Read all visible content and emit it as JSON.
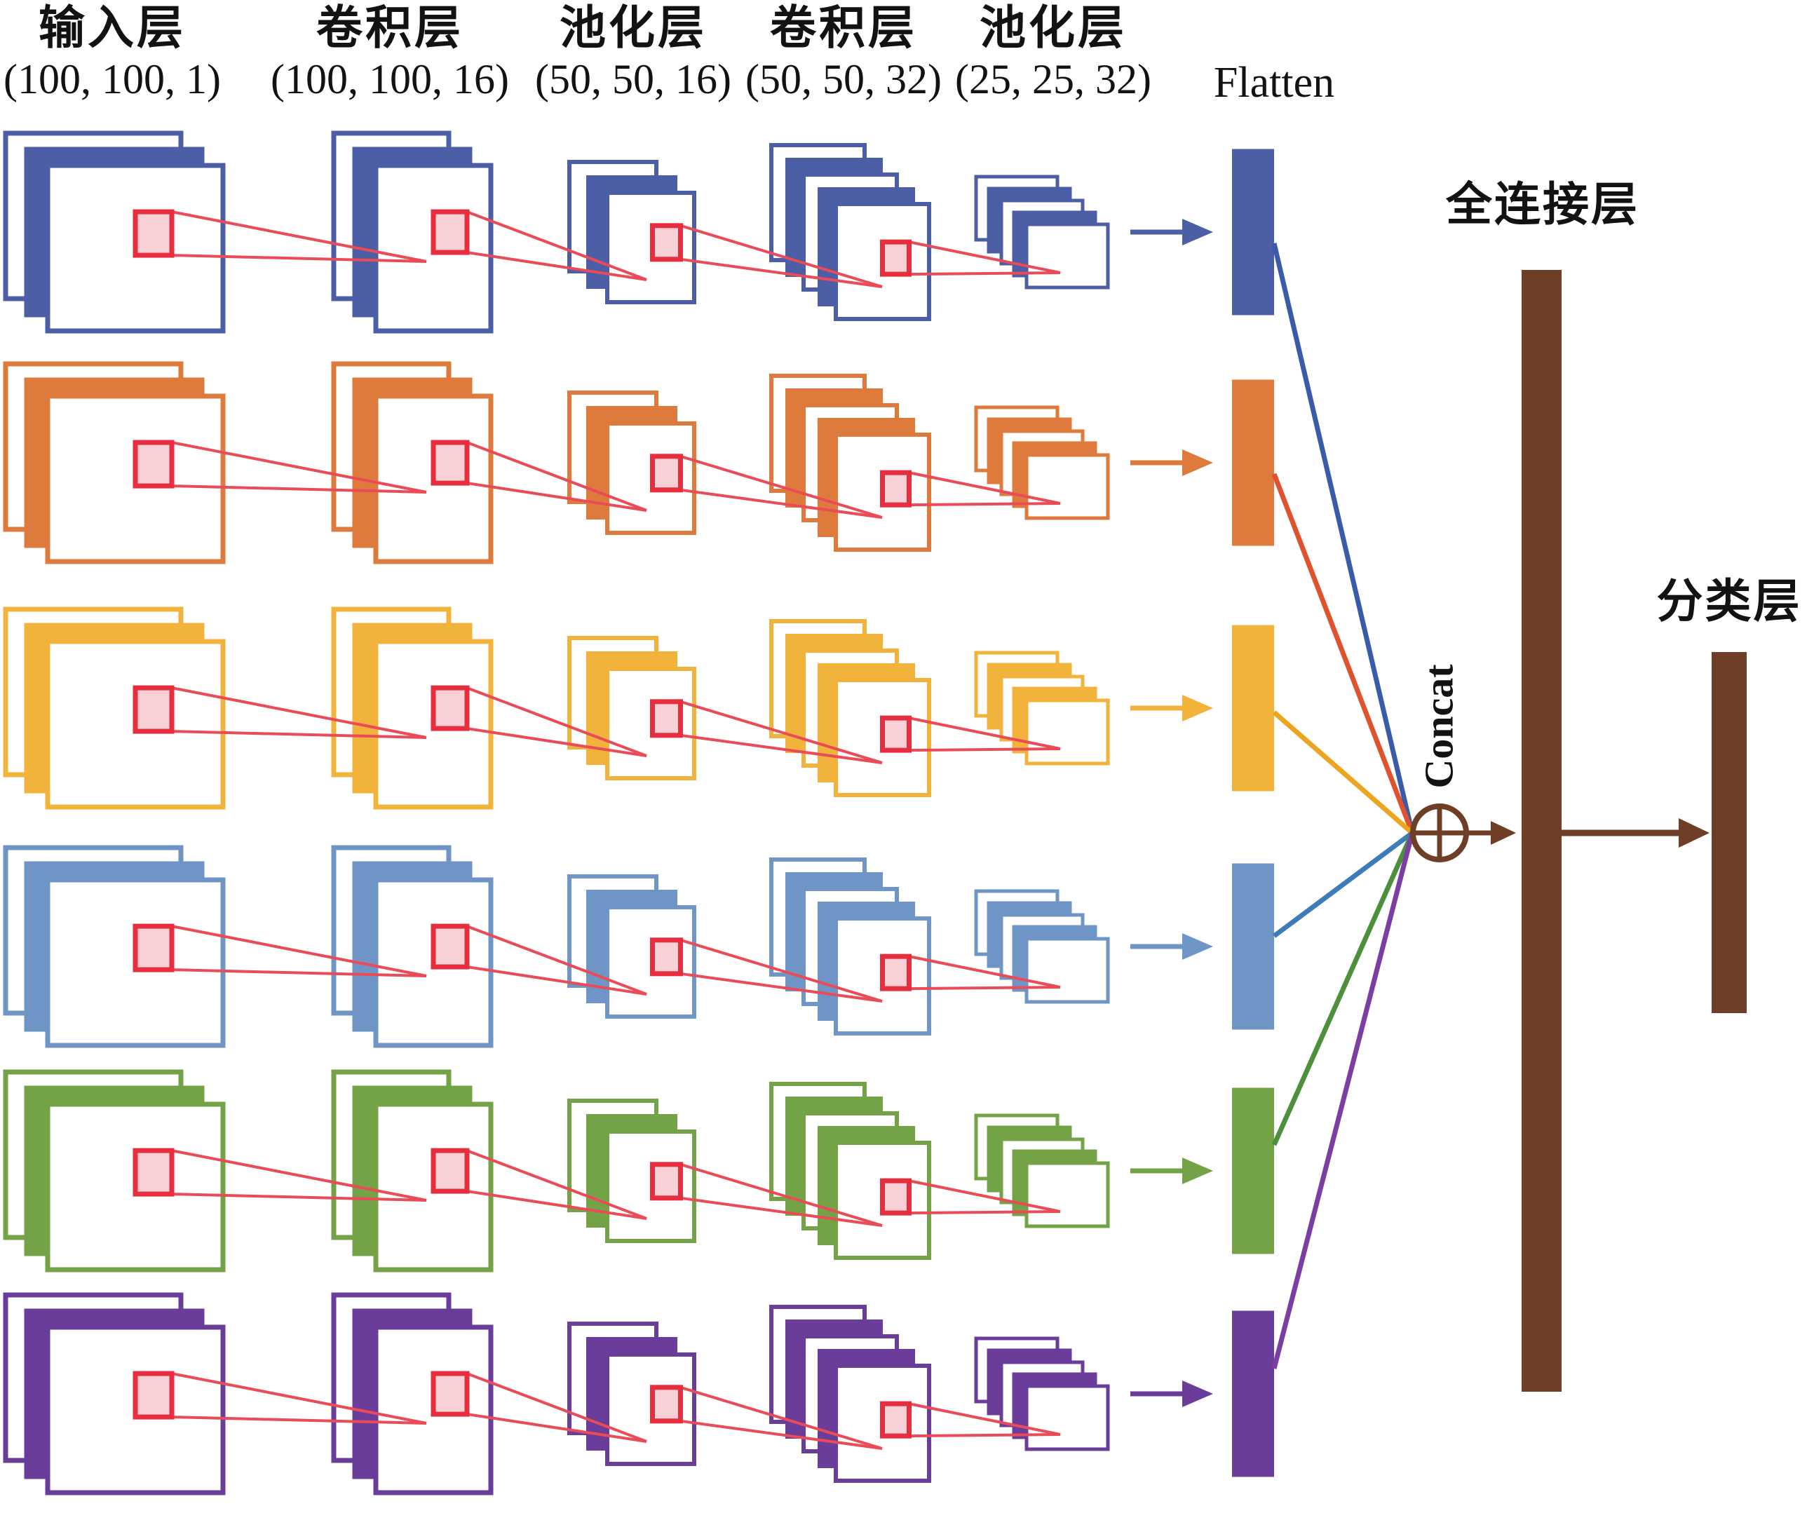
{
  "diagram": {
    "columns": [
      {
        "label": "输入层",
        "dims": "(100, 100, 1)"
      },
      {
        "label": "卷积层",
        "dims": "(100, 100, 16)"
      },
      {
        "label": "池化层",
        "dims": "(50, 50, 16)"
      },
      {
        "label": "卷积层",
        "dims": "(50, 50, 32)"
      },
      {
        "label": "池化层",
        "dims": "(25, 25, 32)"
      }
    ],
    "flatten_label": "Flatten",
    "concat_label": "Concat",
    "fully_connected_label": "全连接层",
    "classifier_label": "分类层",
    "branches": [
      {
        "id": "branch-1-indigo",
        "color": "#4C5EA5",
        "line_color": "#3A5BA9"
      },
      {
        "id": "branch-2-orange",
        "color": "#DE7B3C",
        "line_color": "#E0512D"
      },
      {
        "id": "branch-3-amber",
        "color": "#F2B33C",
        "line_color": "#EDA51F"
      },
      {
        "id": "branch-4-blue",
        "color": "#6E95C6",
        "line_color": "#3E7CB9"
      },
      {
        "id": "branch-5-green",
        "color": "#73A346",
        "line_color": "#4C8F3C"
      },
      {
        "id": "branch-6-purple",
        "color": "#6B3D9B",
        "line_color": "#7B3FA3"
      }
    ],
    "colors": {
      "kernel_border": "#E62E3E",
      "kernel_fill": "#FAD0D7",
      "receptive_line": "#E94B57",
      "concat_brown": "#6F3E26",
      "text": "#121212",
      "background": "#FFFFFF"
    }
  }
}
